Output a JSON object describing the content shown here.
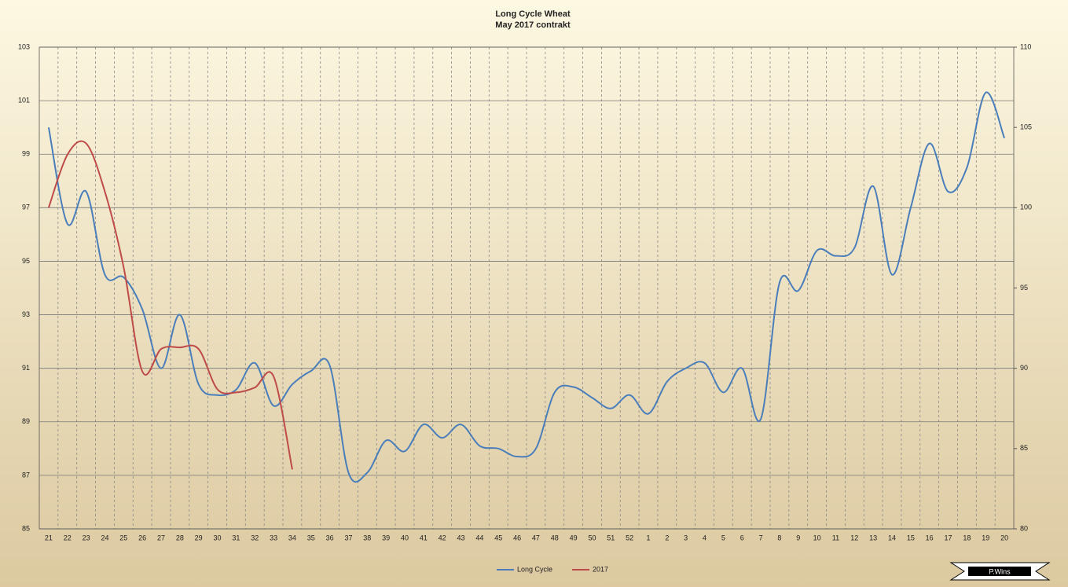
{
  "chart_data": {
    "type": "line",
    "title": "Long Cycle Wheat",
    "subtitle": "May 2017 contrakt",
    "categories": [
      "21",
      "22",
      "23",
      "24",
      "25",
      "26",
      "27",
      "28",
      "29",
      "30",
      "31",
      "32",
      "33",
      "34",
      "35",
      "36",
      "37",
      "38",
      "39",
      "40",
      "41",
      "42",
      "43",
      "44",
      "45",
      "46",
      "47",
      "48",
      "49",
      "50",
      "51",
      "52",
      "1",
      "2",
      "3",
      "4",
      "5",
      "6",
      "7",
      "8",
      "9",
      "10",
      "11",
      "12",
      "13",
      "14",
      "15",
      "16",
      "17",
      "18",
      "19",
      "20"
    ],
    "series": [
      {
        "name": "Long Cycle",
        "color": "#4a7ebb",
        "values": [
          100.0,
          96.4,
          97.6,
          94.5,
          94.4,
          93.2,
          91.0,
          93.0,
          90.4,
          90.0,
          90.2,
          91.2,
          89.6,
          90.4,
          90.9,
          91.1,
          87.1,
          87.1,
          88.3,
          87.9,
          88.9,
          88.4,
          88.9,
          88.1,
          88.0,
          87.7,
          88.0,
          90.1,
          90.3,
          89.9,
          89.5,
          90.0,
          89.3,
          90.5,
          91.0,
          91.2,
          90.1,
          91.0,
          89.1,
          94.2,
          93.9,
          95.4,
          95.2,
          95.5,
          97.8,
          94.5,
          97.0,
          99.4,
          97.6,
          98.5,
          101.3,
          99.6
        ]
      },
      {
        "name": "2017",
        "color": "#be4b48",
        "axis": "y2",
        "values": [
          100.0,
          103.3,
          104.0,
          101.0,
          96.3,
          89.8,
          91.2,
          91.3,
          91.2,
          88.7,
          88.5,
          88.8,
          89.5,
          83.7,
          null,
          null,
          null,
          null,
          null,
          null,
          null,
          null,
          null,
          null,
          null,
          null,
          null,
          null,
          null,
          null,
          null,
          null,
          null,
          null,
          null,
          null,
          null,
          null,
          null,
          null,
          null,
          null,
          null,
          null,
          null,
          null,
          null,
          null,
          null,
          null,
          null,
          null
        ]
      }
    ],
    "ylim": [
      85,
      103
    ],
    "yticks": [
      85,
      87,
      89,
      91,
      93,
      95,
      97,
      99,
      101,
      103
    ],
    "y2lim": [
      80,
      110
    ],
    "y2ticks": [
      80,
      85,
      90,
      95,
      100,
      105,
      110
    ],
    "grid": true,
    "legend": "bottom",
    "logo_text": "P.Wins"
  }
}
